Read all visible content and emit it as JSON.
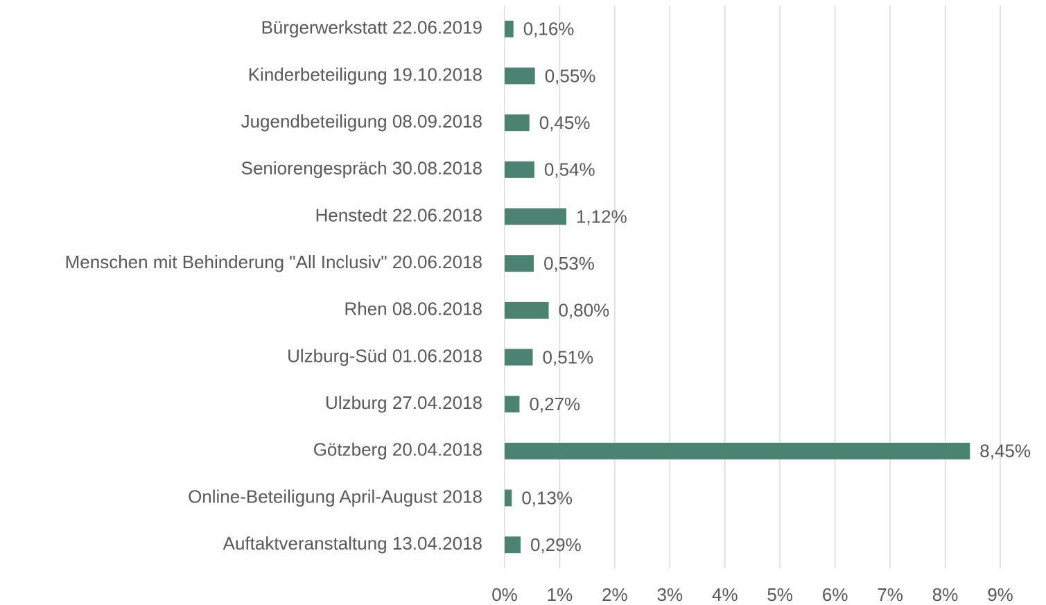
{
  "chart_data": {
    "type": "barh",
    "categories": [
      "Bürgerwerkstatt 22.06.2019",
      "Kinderbeteiligung 19.10.2018",
      "Jugendbeteiligung 08.09.2018",
      "Seniorengespräch 30.08.2018",
      "Henstedt 22.06.2018",
      "Menschen mit Behinderung \"All Inclusiv\" 20.06.2018",
      "Rhen 08.06.2018",
      "Ulzburg-Süd 01.06.2018",
      "Ulzburg 27.04.2018",
      "Götzberg 20.04.2018",
      "Online-Beteiligung April-August 2018",
      "Auftaktveranstaltung 13.04.2018"
    ],
    "values": [
      0.16,
      0.55,
      0.45,
      0.54,
      1.12,
      0.53,
      0.8,
      0.51,
      0.27,
      8.45,
      0.13,
      0.29
    ],
    "value_labels": [
      "0,16%",
      "0,55%",
      "0,45%",
      "0,54%",
      "1,12%",
      "0,53%",
      "0,80%",
      "0,51%",
      "0,27%",
      "8,45%",
      "0,13%",
      "0,29%"
    ],
    "color": "#4b8272",
    "xlim": [
      0,
      9
    ],
    "xticks": [
      {
        "value": 0,
        "label": "0%"
      },
      {
        "value": 1,
        "label": "1%"
      },
      {
        "value": 2,
        "label": "2%"
      },
      {
        "value": 3,
        "label": "3%"
      },
      {
        "value": 4,
        "label": "4%"
      },
      {
        "value": 5,
        "label": "5%"
      },
      {
        "value": 6,
        "label": "6%"
      },
      {
        "value": 7,
        "label": "7%"
      },
      {
        "value": 8,
        "label": "8%"
      },
      {
        "value": 9,
        "label": "9%"
      }
    ],
    "grid": true
  }
}
